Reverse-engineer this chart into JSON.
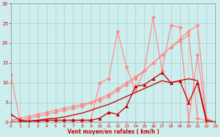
{
  "xlabel": "Vent moyen/en rafales ( km/h )",
  "bg_color": "#cdeeed",
  "grid_color": "#aacccc",
  "x_ticks": [
    0,
    1,
    2,
    3,
    4,
    5,
    6,
    7,
    8,
    9,
    10,
    11,
    12,
    13,
    14,
    15,
    16,
    17,
    18,
    19,
    20,
    21,
    22,
    23
  ],
  "y_ticks": [
    0,
    5,
    10,
    15,
    20,
    25,
    30
  ],
  "xlim": [
    0,
    23
  ],
  "ylim": [
    0,
    30
  ],
  "light_pink": "#ff8888",
  "dark_red": "#cc0000",
  "line_jagged1_x": [
    0,
    1,
    2,
    3,
    4,
    5,
    6,
    7,
    8,
    9,
    10,
    11,
    12,
    13,
    14,
    15,
    16,
    17,
    18,
    19,
    20,
    21,
    22,
    23
  ],
  "line_jagged1_y": [
    12,
    0.3,
    0.3,
    0.3,
    0.5,
    0.5,
    0.5,
    0.5,
    0.5,
    0.5,
    10,
    11,
    23,
    14,
    8,
    13,
    26.5,
    13,
    24.5,
    24,
    0,
    17,
    0.5,
    0
  ],
  "line_diag1_x": [
    0,
    1,
    2,
    3,
    4,
    5,
    6,
    7,
    8,
    9,
    10,
    11,
    12,
    13,
    14,
    15,
    16,
    17,
    18,
    19,
    20,
    21,
    22,
    23
  ],
  "line_diag1_y": [
    0.5,
    1,
    1.5,
    2,
    2.5,
    3,
    3.5,
    4,
    4.5,
    5,
    5.5,
    6.5,
    8,
    9.5,
    11,
    13,
    15,
    17,
    19,
    21,
    23,
    24.5,
    1,
    0
  ],
  "line_diag2_x": [
    0,
    1,
    2,
    3,
    4,
    5,
    6,
    7,
    8,
    9,
    10,
    11,
    12,
    13,
    14,
    15,
    16,
    17,
    18,
    19,
    20,
    21,
    22,
    23
  ],
  "line_diag2_y": [
    0.3,
    0.5,
    1,
    1.5,
    2,
    2.5,
    3,
    3.5,
    4,
    5,
    6,
    7,
    8.5,
    10,
    11.5,
    13,
    15,
    17,
    19,
    20.5,
    22,
    1,
    0.3,
    0
  ],
  "line_dark1_x": [
    0,
    1,
    2,
    3,
    4,
    5,
    6,
    7,
    8,
    9,
    10,
    11,
    12,
    13,
    14,
    15,
    16,
    17,
    18,
    19,
    20,
    21,
    22,
    23
  ],
  "line_dark1_y": [
    2,
    0.5,
    0.3,
    0.3,
    0.5,
    0.5,
    0.5,
    0.5,
    0.5,
    0.5,
    1,
    2.5,
    2,
    4,
    9,
    9.5,
    11,
    12.5,
    10,
    10.5,
    5,
    10,
    0,
    0
  ],
  "line_dark2_x": [
    0,
    1,
    2,
    3,
    4,
    5,
    6,
    7,
    8,
    9,
    10,
    11,
    12,
    13,
    14,
    15,
    16,
    17,
    18,
    19,
    20,
    21,
    22,
    23
  ],
  "line_dark2_y": [
    0,
    0,
    0.3,
    0.5,
    0.8,
    1,
    1.3,
    1.8,
    2.3,
    3,
    3.8,
    4.5,
    5.5,
    6.5,
    7.5,
    8.5,
    9.5,
    10.5,
    10,
    10.5,
    11,
    10.5,
    0.5,
    0
  ]
}
